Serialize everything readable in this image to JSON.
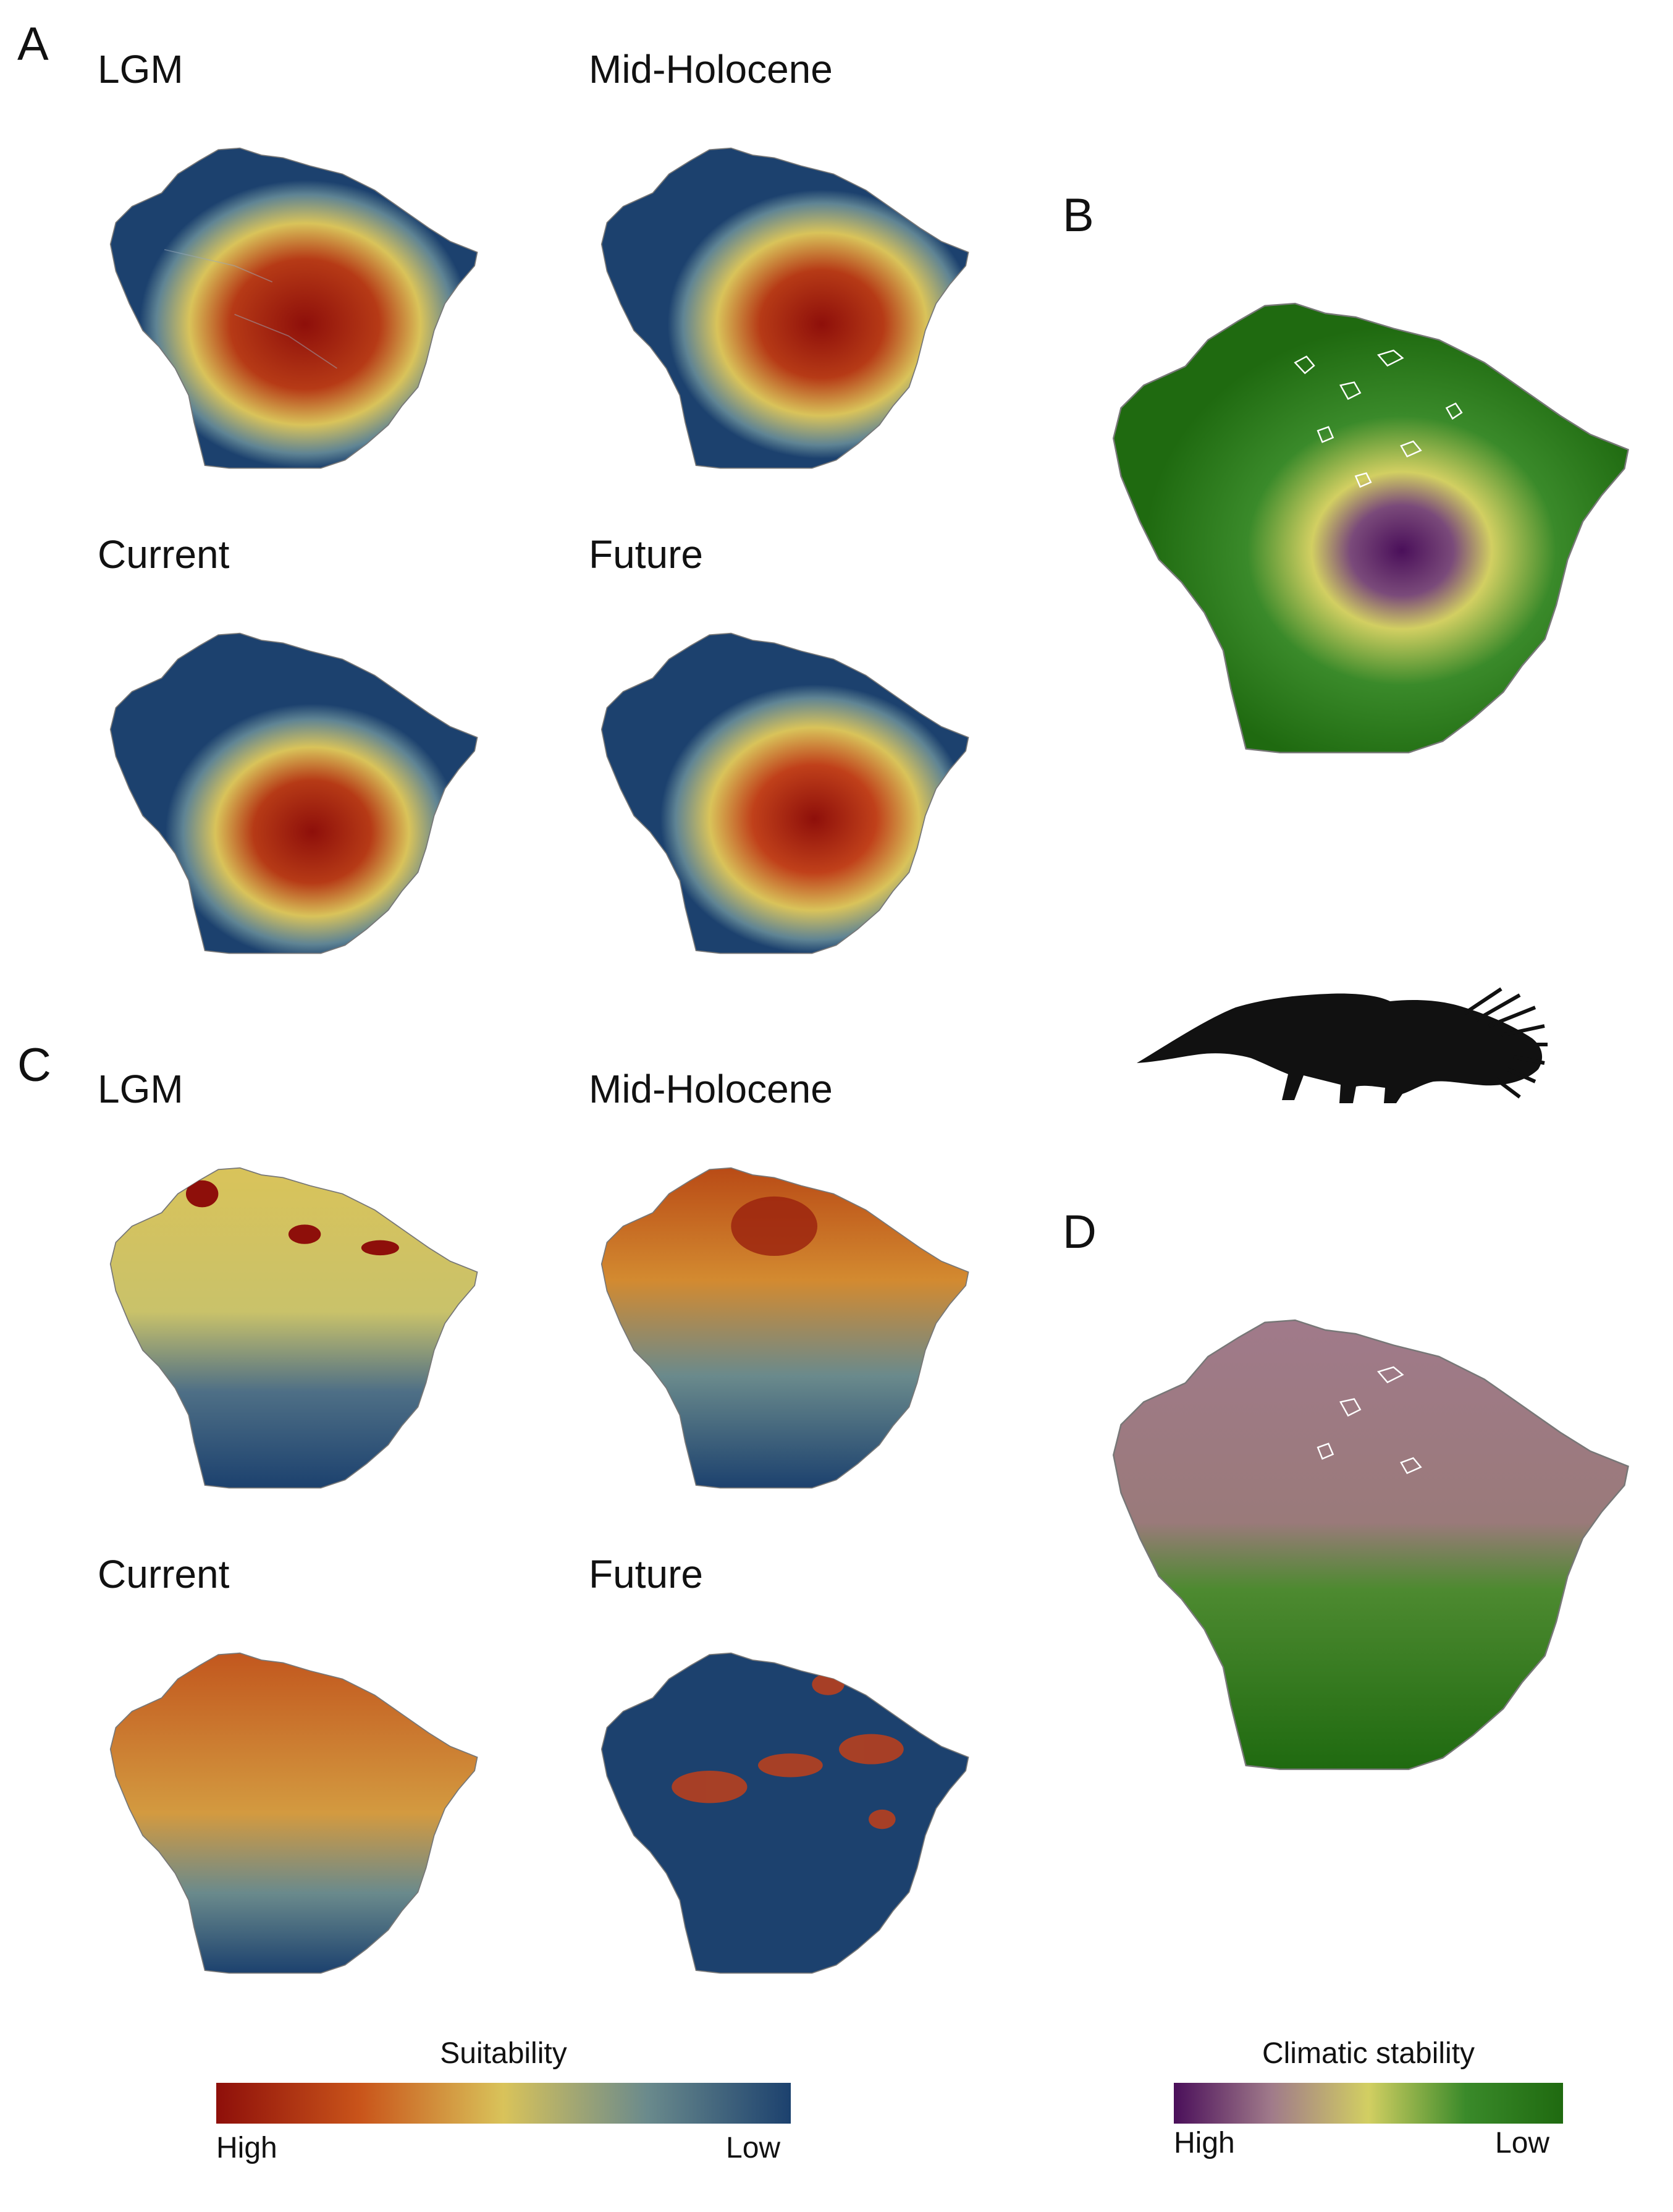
{
  "panels": {
    "A": {
      "letter": "A",
      "maps": [
        "LGM",
        "Mid-Holocene",
        "Current",
        "Future"
      ]
    },
    "B": {
      "letter": "B"
    },
    "C": {
      "letter": "C",
      "maps": [
        "LGM",
        "Mid-Holocene",
        "Current",
        "Future"
      ]
    },
    "D": {
      "letter": "D"
    }
  },
  "legends": {
    "suitability": {
      "title": "Suitability",
      "high": "High",
      "low": "Low",
      "colors": [
        "#8e0f0a",
        "#c9541a",
        "#d9c35a",
        "#6a8a8c",
        "#1c416e"
      ]
    },
    "stability": {
      "title": "Climatic stability",
      "high": "High",
      "low": "Low",
      "colors": [
        "#4a0f5a",
        "#a07a8a",
        "#d2cf62",
        "#3a8a2a",
        "#1f6a10"
      ]
    }
  },
  "silhouette": "giant-anteater-icon"
}
